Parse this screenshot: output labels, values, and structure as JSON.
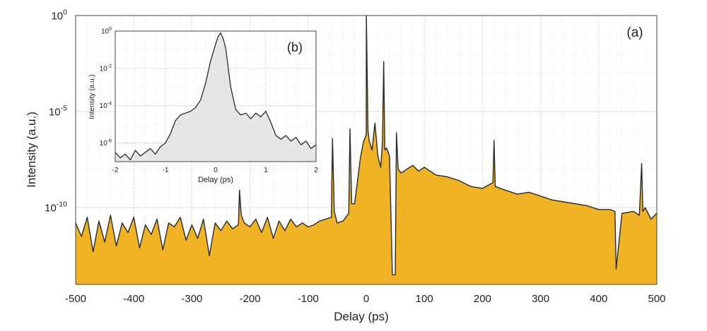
{
  "chart_data": [
    {
      "type": "area",
      "panel_label": "(a)",
      "xlabel": "Delay (ps)",
      "ylabel": "Intensity (a.u.)",
      "xlim": [
        -500,
        500
      ],
      "ylim_log10": [
        -14,
        0
      ],
      "y_scale": "log",
      "grid": true,
      "x_ticks": [
        "-500",
        "-400",
        "-300",
        "-200",
        "-100",
        "0",
        "100",
        "200",
        "300",
        "400",
        "500"
      ],
      "y_ticks": [
        {
          "base": "10",
          "exp": "0",
          "log10": 0
        },
        {
          "base": "10",
          "exp": "-5",
          "log10": -5
        },
        {
          "base": "10",
          "exp": "-10",
          "log10": -10
        }
      ],
      "fill_color": "#f0b323",
      "line_color": "#2a2a2a",
      "x": [
        -500,
        -490,
        -480,
        -470,
        -460,
        -450,
        -440,
        -430,
        -420,
        -410,
        -400,
        -390,
        -380,
        -370,
        -360,
        -350,
        -340,
        -330,
        -320,
        -310,
        -300,
        -290,
        -280,
        -270,
        -260,
        -250,
        -240,
        -230,
        -220,
        -218,
        -215,
        -210,
        -200,
        -190,
        -180,
        -170,
        -160,
        -150,
        -140,
        -130,
        -120,
        -110,
        -100,
        -90,
        -80,
        -70,
        -60,
        -58,
        -55,
        -50,
        -40,
        -30,
        -28,
        -25,
        -20,
        -10,
        -5,
        0,
        0.3,
        3,
        5,
        10,
        15,
        20,
        25,
        28,
        30,
        32,
        35,
        40,
        45,
        47,
        50,
        52,
        55,
        60,
        70,
        80,
        90,
        100,
        120,
        140,
        160,
        180,
        200,
        218,
        220,
        222,
        240,
        260,
        280,
        300,
        320,
        340,
        360,
        380,
        400,
        420,
        428,
        430,
        440,
        460,
        470,
        474,
        476,
        480,
        490,
        500
      ],
      "y_log10": [
        -10.8,
        -11.5,
        -10.5,
        -12.3,
        -10.7,
        -11.8,
        -10.4,
        -12.0,
        -10.8,
        -11.3,
        -10.5,
        -12.1,
        -10.9,
        -11.4,
        -10.6,
        -12.2,
        -10.8,
        -11.0,
        -10.5,
        -11.7,
        -10.9,
        -11.6,
        -10.6,
        -12.5,
        -10.8,
        -11.2,
        -10.7,
        -11.1,
        -10.9,
        -9.1,
        -10.4,
        -10.8,
        -11.0,
        -10.6,
        -11.3,
        -10.5,
        -11.6,
        -10.7,
        -11.2,
        -10.6,
        -11.0,
        -10.8,
        -11.0,
        -10.9,
        -10.7,
        -10.6,
        -10.5,
        -6.4,
        -10.2,
        -10.8,
        -10.7,
        -10.3,
        -5.9,
        -9.8,
        -9.8,
        -7.4,
        -6.6,
        -6.2,
        0.0,
        -6.0,
        -6.5,
        -7.0,
        -5.6,
        -7.3,
        -7.9,
        -6.6,
        -2.4,
        -7.0,
        -6.9,
        -7.3,
        -13.5,
        -13.5,
        -13.5,
        -6.1,
        -8.0,
        -8.2,
        -8.0,
        -7.8,
        -8.1,
        -7.9,
        -8.3,
        -8.4,
        -8.6,
        -8.9,
        -9.0,
        -8.7,
        -6.5,
        -8.9,
        -9.1,
        -9.3,
        -9.2,
        -9.4,
        -9.6,
        -9.7,
        -9.8,
        -9.9,
        -10.1,
        -10.1,
        -10.2,
        -13.2,
        -10.3,
        -10.2,
        -10.4,
        -7.7,
        -10.2,
        -10.0,
        -10.6,
        -10.3
      ]
    },
    {
      "type": "area",
      "panel_label": "(b)",
      "xlabel": "Delay (ps)",
      "ylabel": "Intensity (a.u.)",
      "xlim": [
        -2,
        2
      ],
      "ylim_log10": [
        -7,
        0
      ],
      "y_scale": "log",
      "grid": true,
      "x_ticks": [
        "-2",
        "-1",
        "0",
        "1",
        "2"
      ],
      "y_ticks": [
        {
          "base": "10",
          "exp": "0",
          "log10": 0
        },
        {
          "base": "10",
          "exp": "-2",
          "log10": -2
        },
        {
          "base": "10",
          "exp": "-4",
          "log10": -4
        },
        {
          "base": "10",
          "exp": "-6",
          "log10": -6
        }
      ],
      "fill_color": "#e6e6e6",
      "line_color": "#2a2a2a",
      "x": [
        -2.0,
        -1.9,
        -1.8,
        -1.7,
        -1.6,
        -1.5,
        -1.4,
        -1.3,
        -1.2,
        -1.1,
        -1.0,
        -0.9,
        -0.8,
        -0.7,
        -0.6,
        -0.5,
        -0.4,
        -0.3,
        -0.2,
        -0.1,
        0.0,
        0.05,
        0.1,
        0.15,
        0.2,
        0.3,
        0.4,
        0.5,
        0.6,
        0.7,
        0.8,
        0.9,
        1.0,
        1.1,
        1.2,
        1.3,
        1.4,
        1.5,
        1.6,
        1.7,
        1.8,
        1.9,
        2.0
      ],
      "y_log10": [
        -6.5,
        -6.8,
        -6.6,
        -6.9,
        -6.4,
        -6.7,
        -6.5,
        -6.3,
        -6.6,
        -6.2,
        -6.0,
        -5.5,
        -4.8,
        -4.5,
        -4.4,
        -4.3,
        -4.1,
        -3.7,
        -2.8,
        -1.6,
        -0.7,
        -0.3,
        -0.1,
        -0.4,
        -0.9,
        -3.0,
        -4.2,
        -4.5,
        -4.4,
        -4.7,
        -4.4,
        -4.6,
        -4.3,
        -4.9,
        -5.6,
        -5.8,
        -5.6,
        -5.9,
        -5.7,
        -6.1,
        -5.9,
        -6.3,
        -6.1
      ]
    }
  ]
}
